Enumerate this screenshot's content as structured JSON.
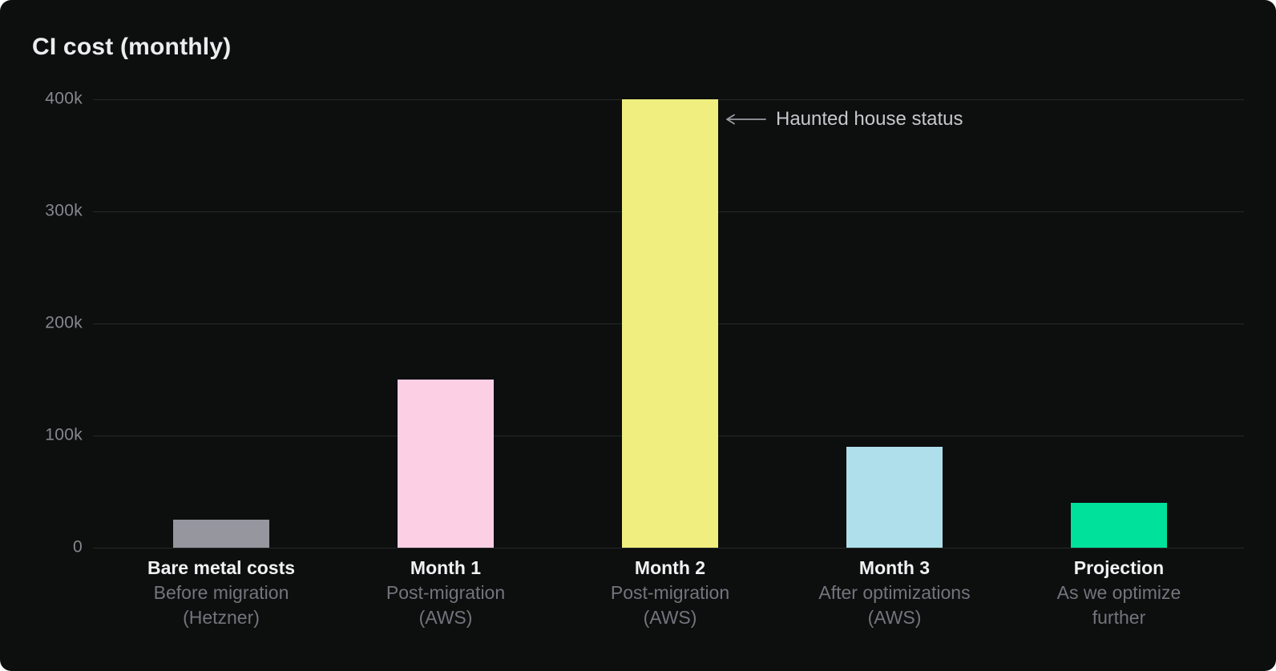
{
  "chart_data": {
    "type": "bar",
    "title": "CI cost (monthly)",
    "xlabel": "",
    "ylabel": "",
    "ylim": [
      0,
      400000
    ],
    "grid": true,
    "legend": "none",
    "y_axis": {
      "max": 400000,
      "ticks": [
        {
          "label": "400k",
          "value": 400000
        },
        {
          "label": "300k",
          "value": 300000
        },
        {
          "label": "200k",
          "value": 200000
        },
        {
          "label": "100k",
          "value": 100000
        },
        {
          "label": "0",
          "value": 0
        }
      ]
    },
    "categories": [
      {
        "label": "Bare metal costs",
        "sublabel_lines": [
          "Before migration",
          "(Hetzner)"
        ],
        "value": 25000,
        "value_label": "25k",
        "color": "#95969e"
      },
      {
        "label": "Month 1",
        "sublabel_lines": [
          "Post-migration",
          "(AWS)"
        ],
        "value": 150000,
        "value_label": "150k",
        "color": "#fdcfe5"
      },
      {
        "label": "Month 2",
        "sublabel_lines": [
          "Post-migration",
          "(AWS)"
        ],
        "value": 400000,
        "value_label": "400k",
        "color": "#efee7e"
      },
      {
        "label": "Month 3",
        "sublabel_lines": [
          "After optimizations",
          "(AWS)"
        ],
        "value": 90000,
        "value_label": "90k",
        "color": "#afdfeb"
      },
      {
        "label": "Projection",
        "sublabel_lines": [
          "As we optimize",
          "further"
        ],
        "value": 40000,
        "value_label": "40k",
        "color": "#00e19b"
      }
    ],
    "annotation": {
      "text": "Haunted house status",
      "arrow_direction": "left",
      "target_category": "Month 2"
    }
  },
  "colors": {
    "background": "#0d0e0e",
    "title_text": "#ededf0",
    "gridline": "#272829",
    "tick_text": "#87878e",
    "category_text": "#f1f1f3",
    "subcategory_text": "#74747c",
    "annotation_text": "#c7c7cc",
    "arrow": "#9b9ba2"
  }
}
